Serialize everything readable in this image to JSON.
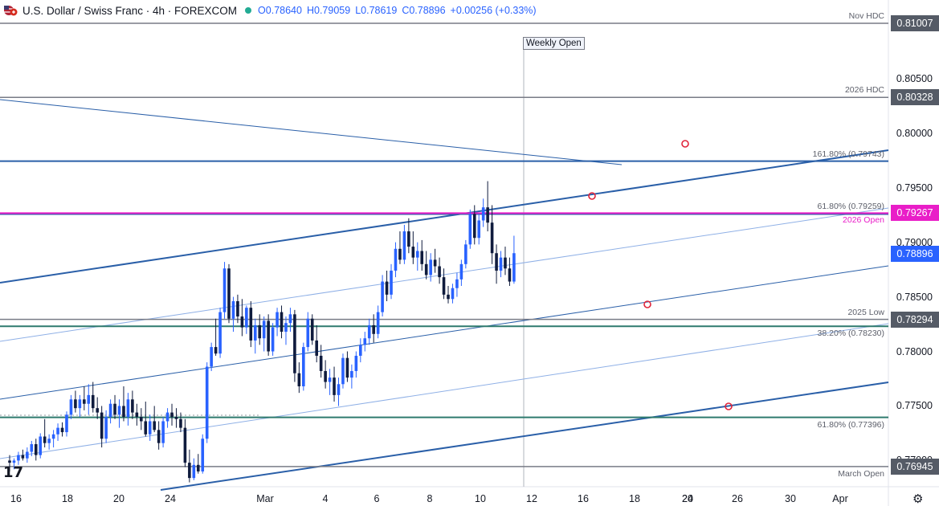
{
  "header": {
    "title": "U.S. Dollar / Swiss Franc · 4h · FOREXCOM",
    "open": "O0.78640",
    "high": "H0.79059",
    "low": "L0.78619",
    "close": "C0.78896",
    "change": "+0.00256 (+0.33%)"
  },
  "price_axis": {
    "ticks": [
      "0.80500",
      "0.80000",
      "0.79500",
      "0.79000",
      "0.78500",
      "0.78000",
      "0.77500",
      "0.77000"
    ],
    "current_price": "0.78896",
    "current_color": "#2962ff"
  },
  "time_axis": {
    "ticks": [
      "16",
      "18",
      "20",
      "24",
      "Mar",
      "4",
      "6",
      "8",
      "10",
      "12",
      "16",
      "18",
      "20",
      "24",
      "26",
      "30",
      "Apr"
    ]
  },
  "levels": [
    {
      "name": "Nov HDC",
      "value": "0.81007",
      "price": 0.81007,
      "color": "#787b86"
    },
    {
      "name": "2026 HDC",
      "value": "0.80328",
      "price": 0.80328,
      "color": "#787b86"
    },
    {
      "name": "161.80% (0.79743)",
      "value": "",
      "price": 0.79743,
      "color": "#2a5fa8"
    },
    {
      "name": "61.80% (0.79259)",
      "value": "",
      "price": 0.79259,
      "color": "#2a5fa8"
    },
    {
      "name": "2026 Open",
      "value": "0.79267",
      "price": 0.79267,
      "color": "#e91ec8"
    },
    {
      "name": "2025 Low",
      "value": "0.78294",
      "price": 0.78294,
      "color": "#787b86"
    },
    {
      "name": "38.20% (0.78230)",
      "value": "",
      "price": 0.7823,
      "color": "#2e7a6e"
    },
    {
      "name": "61.80% (0.77396)",
      "value": "",
      "price": 0.77396,
      "color": "#2e7a6e"
    },
    {
      "name": "March Open",
      "value": "0.76945",
      "price": 0.76945,
      "color": "#787b86"
    }
  ],
  "annotations": {
    "weekly_open": "Weekly Open"
  },
  "chart_data": {
    "type": "candlestick",
    "title": "U.S. Dollar / Swiss Franc · 4h · FOREXCOM",
    "ylim": [
      0.7676,
      0.8122
    ],
    "ylabel": "",
    "xlabel": "",
    "candles": [
      [
        0.77,
        0.7705,
        0.769,
        0.7698
      ],
      [
        0.7698,
        0.7702,
        0.7692,
        0.77
      ],
      [
        0.77,
        0.7708,
        0.7696,
        0.7705
      ],
      [
        0.7705,
        0.771,
        0.77,
        0.7702
      ],
      [
        0.7702,
        0.7712,
        0.7698,
        0.7708
      ],
      [
        0.7708,
        0.7718,
        0.7704,
        0.7715
      ],
      [
        0.7715,
        0.772,
        0.77,
        0.7705
      ],
      [
        0.7705,
        0.7725,
        0.7702,
        0.7722
      ],
      [
        0.7722,
        0.7738,
        0.7712,
        0.7716
      ],
      [
        0.7716,
        0.7724,
        0.771,
        0.772
      ],
      [
        0.772,
        0.7728,
        0.7712,
        0.7724
      ],
      [
        0.7724,
        0.7734,
        0.7718,
        0.773
      ],
      [
        0.773,
        0.7735,
        0.7722,
        0.7726
      ],
      [
        0.7726,
        0.7745,
        0.7722,
        0.7742
      ],
      [
        0.7742,
        0.776,
        0.7738,
        0.7756
      ],
      [
        0.7756,
        0.7764,
        0.7744,
        0.7748
      ],
      [
        0.7748,
        0.776,
        0.774,
        0.7756
      ],
      [
        0.7756,
        0.7768,
        0.7746,
        0.7752
      ],
      [
        0.7752,
        0.777,
        0.7742,
        0.776
      ],
      [
        0.776,
        0.7772,
        0.7744,
        0.7748
      ],
      [
        0.7748,
        0.7758,
        0.7738,
        0.7744
      ],
      [
        0.7744,
        0.775,
        0.7712,
        0.772
      ],
      [
        0.772,
        0.7746,
        0.7716,
        0.774
      ],
      [
        0.774,
        0.7756,
        0.7734,
        0.7752
      ],
      [
        0.7752,
        0.776,
        0.7738,
        0.7742
      ],
      [
        0.7742,
        0.7756,
        0.773,
        0.775
      ],
      [
        0.775,
        0.7768,
        0.7736,
        0.774
      ],
      [
        0.774,
        0.7762,
        0.7732,
        0.7756
      ],
      [
        0.7756,
        0.7764,
        0.7738,
        0.7744
      ],
      [
        0.7744,
        0.7752,
        0.7732,
        0.774
      ],
      [
        0.774,
        0.7748,
        0.7728,
        0.7736
      ],
      [
        0.7736,
        0.7754,
        0.7722,
        0.7724
      ],
      [
        0.7724,
        0.7742,
        0.7718,
        0.7736
      ],
      [
        0.7736,
        0.775,
        0.7726,
        0.7728
      ],
      [
        0.7728,
        0.7736,
        0.771,
        0.7716
      ],
      [
        0.7716,
        0.774,
        0.7712,
        0.7736
      ],
      [
        0.7736,
        0.7748,
        0.773,
        0.7744
      ],
      [
        0.7744,
        0.7752,
        0.7732,
        0.774
      ],
      [
        0.774,
        0.7748,
        0.773,
        0.7738
      ],
      [
        0.7738,
        0.7744,
        0.7726,
        0.773
      ],
      [
        0.773,
        0.7738,
        0.7694,
        0.7698
      ],
      [
        0.7698,
        0.771,
        0.768,
        0.7684
      ],
      [
        0.7684,
        0.7702,
        0.7682,
        0.7696
      ],
      [
        0.7696,
        0.7706,
        0.7688,
        0.769
      ],
      [
        0.769,
        0.7724,
        0.7688,
        0.772
      ],
      [
        0.772,
        0.779,
        0.7716,
        0.7786
      ],
      [
        0.7786,
        0.7808,
        0.7782,
        0.7804
      ],
      [
        0.7804,
        0.783,
        0.7796,
        0.7798
      ],
      [
        0.7798,
        0.784,
        0.7794,
        0.7836
      ],
      [
        0.7836,
        0.7882,
        0.783,
        0.7876
      ],
      [
        0.7876,
        0.788,
        0.7826,
        0.783
      ],
      [
        0.783,
        0.785,
        0.7818,
        0.7846
      ],
      [
        0.7846,
        0.7852,
        0.7826,
        0.7832
      ],
      [
        0.7832,
        0.7848,
        0.7814,
        0.7822
      ],
      [
        0.7822,
        0.7842,
        0.7816,
        0.784
      ],
      [
        0.784,
        0.7846,
        0.7804,
        0.781
      ],
      [
        0.781,
        0.783,
        0.7798,
        0.7824
      ],
      [
        0.7824,
        0.7834,
        0.7806,
        0.7812
      ],
      [
        0.7812,
        0.7832,
        0.78,
        0.7828
      ],
      [
        0.7828,
        0.7834,
        0.7796,
        0.78
      ],
      [
        0.78,
        0.7826,
        0.7796,
        0.7822
      ],
      [
        0.7822,
        0.784,
        0.7814,
        0.7836
      ],
      [
        0.7836,
        0.7842,
        0.7812,
        0.7818
      ],
      [
        0.7818,
        0.7832,
        0.7806,
        0.7826
      ],
      [
        0.7826,
        0.784,
        0.7818,
        0.7834
      ],
      [
        0.7834,
        0.7838,
        0.7772,
        0.778
      ],
      [
        0.778,
        0.779,
        0.7762,
        0.7768
      ],
      [
        0.7768,
        0.7808,
        0.7764,
        0.7804
      ],
      [
        0.7804,
        0.7836,
        0.78,
        0.783
      ],
      [
        0.783,
        0.7834,
        0.7806,
        0.781
      ],
      [
        0.781,
        0.7824,
        0.779,
        0.7796
      ],
      [
        0.7796,
        0.7806,
        0.7776,
        0.7782
      ],
      [
        0.7782,
        0.7792,
        0.7766,
        0.7772
      ],
      [
        0.7772,
        0.7784,
        0.776,
        0.7776
      ],
      [
        0.7776,
        0.7786,
        0.7754,
        0.776
      ],
      [
        0.776,
        0.7776,
        0.775,
        0.777
      ],
      [
        0.777,
        0.7798,
        0.7766,
        0.7794
      ],
      [
        0.7794,
        0.78,
        0.7772,
        0.7776
      ],
      [
        0.7776,
        0.7788,
        0.7766,
        0.7782
      ],
      [
        0.7782,
        0.78,
        0.7776,
        0.7796
      ],
      [
        0.7796,
        0.7812,
        0.779,
        0.7806
      ],
      [
        0.7806,
        0.7818,
        0.78,
        0.7812
      ],
      [
        0.7812,
        0.783,
        0.7806,
        0.7824
      ],
      [
        0.7824,
        0.7834,
        0.7808,
        0.7816
      ],
      [
        0.7816,
        0.7842,
        0.7812,
        0.7836
      ],
      [
        0.7836,
        0.787,
        0.7832,
        0.7864
      ],
      [
        0.7864,
        0.7874,
        0.7846,
        0.7852
      ],
      [
        0.7852,
        0.788,
        0.7848,
        0.7874
      ],
      [
        0.7874,
        0.79,
        0.7868,
        0.7894
      ],
      [
        0.7894,
        0.791,
        0.788,
        0.7884
      ],
      [
        0.7884,
        0.7916,
        0.788,
        0.791
      ],
      [
        0.791,
        0.7922,
        0.789,
        0.7896
      ],
      [
        0.7896,
        0.791,
        0.788,
        0.7886
      ],
      [
        0.7886,
        0.79,
        0.7874,
        0.7892
      ],
      [
        0.7892,
        0.7902,
        0.7874,
        0.788
      ],
      [
        0.788,
        0.7892,
        0.7866,
        0.787
      ],
      [
        0.787,
        0.789,
        0.7864,
        0.7884
      ],
      [
        0.7884,
        0.7894,
        0.7872,
        0.7878
      ],
      [
        0.7878,
        0.7886,
        0.7862,
        0.7868
      ],
      [
        0.7868,
        0.7876,
        0.7848,
        0.7852
      ],
      [
        0.7852,
        0.786,
        0.7844,
        0.7848
      ],
      [
        0.7848,
        0.7862,
        0.7844,
        0.7858
      ],
      [
        0.7858,
        0.7872,
        0.785,
        0.7866
      ],
      [
        0.7866,
        0.7884,
        0.786,
        0.788
      ],
      [
        0.788,
        0.7902,
        0.7876,
        0.7898
      ],
      [
        0.7898,
        0.793,
        0.7894,
        0.7926
      ],
      [
        0.7926,
        0.7934,
        0.7898,
        0.7904
      ],
      [
        0.7904,
        0.7926,
        0.7898,
        0.792
      ],
      [
        0.792,
        0.794,
        0.7914,
        0.7932
      ],
      [
        0.7932,
        0.7956,
        0.791,
        0.7918
      ],
      [
        0.7918,
        0.7934,
        0.788,
        0.789
      ],
      [
        0.789,
        0.7898,
        0.7862,
        0.7874
      ],
      [
        0.7874,
        0.7892,
        0.7868,
        0.7886
      ],
      [
        0.7886,
        0.7896,
        0.787,
        0.7876
      ],
      [
        0.7876,
        0.7886,
        0.786,
        0.7864
      ],
      [
        0.7864,
        0.7906,
        0.7862,
        0.789
      ]
    ]
  }
}
